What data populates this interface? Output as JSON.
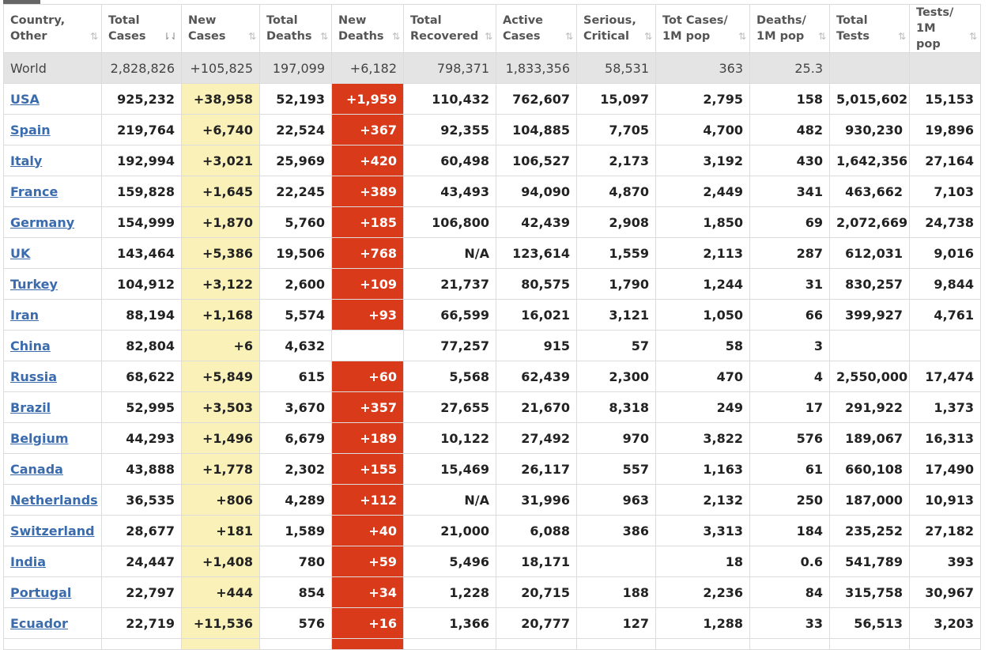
{
  "headers": [
    {
      "line1": "Country,",
      "line2": "Other",
      "sort": "⇅",
      "active": false
    },
    {
      "line1": "Total",
      "line2": "Cases",
      "sort": "⇂⇃",
      "active": true
    },
    {
      "line1": "New",
      "line2": "Cases",
      "sort": "⇅",
      "active": false
    },
    {
      "line1": "Total",
      "line2": "Deaths",
      "sort": "⇅",
      "active": false
    },
    {
      "line1": "New",
      "line2": "Deaths",
      "sort": "⇅",
      "active": false
    },
    {
      "line1": "Total",
      "line2": "Recovered",
      "sort": "⇅",
      "active": false
    },
    {
      "line1": "Active",
      "line2": "Cases",
      "sort": "⇅",
      "active": false
    },
    {
      "line1": "Serious,",
      "line2": "Critical",
      "sort": "⇅",
      "active": false
    },
    {
      "line1": "Tot Cases/",
      "line2": "1M pop",
      "sort": "⇅",
      "active": false
    },
    {
      "line1": "Deaths/",
      "line2": "1M pop",
      "sort": "⇅",
      "active": false
    },
    {
      "line1": "Total",
      "line2": "Tests",
      "sort": "⇅",
      "active": false
    },
    {
      "line1": "Tests/",
      "line2": "1M pop",
      "sort": "⇅",
      "active": false
    }
  ],
  "world": [
    "World",
    "2,828,826",
    "+105,825",
    "197,099",
    "+6,182",
    "798,371",
    "1,833,356",
    "58,531",
    "363",
    "25.3",
    "",
    ""
  ],
  "rows": [
    [
      "USA",
      "925,232",
      "+38,958",
      "52,193",
      "+1,959",
      "110,432",
      "762,607",
      "15,097",
      "2,795",
      "158",
      "5,015,602",
      "15,153"
    ],
    [
      "Spain",
      "219,764",
      "+6,740",
      "22,524",
      "+367",
      "92,355",
      "104,885",
      "7,705",
      "4,700",
      "482",
      "930,230",
      "19,896"
    ],
    [
      "Italy",
      "192,994",
      "+3,021",
      "25,969",
      "+420",
      "60,498",
      "106,527",
      "2,173",
      "3,192",
      "430",
      "1,642,356",
      "27,164"
    ],
    [
      "France",
      "159,828",
      "+1,645",
      "22,245",
      "+389",
      "43,493",
      "94,090",
      "4,870",
      "2,449",
      "341",
      "463,662",
      "7,103"
    ],
    [
      "Germany",
      "154,999",
      "+1,870",
      "5,760",
      "+185",
      "106,800",
      "42,439",
      "2,908",
      "1,850",
      "69",
      "2,072,669",
      "24,738"
    ],
    [
      "UK",
      "143,464",
      "+5,386",
      "19,506",
      "+768",
      "N/A",
      "123,614",
      "1,559",
      "2,113",
      "287",
      "612,031",
      "9,016"
    ],
    [
      "Turkey",
      "104,912",
      "+3,122",
      "2,600",
      "+109",
      "21,737",
      "80,575",
      "1,790",
      "1,244",
      "31",
      "830,257",
      "9,844"
    ],
    [
      "Iran",
      "88,194",
      "+1,168",
      "5,574",
      "+93",
      "66,599",
      "16,021",
      "3,121",
      "1,050",
      "66",
      "399,927",
      "4,761"
    ],
    [
      "China",
      "82,804",
      "+6",
      "4,632",
      "",
      "77,257",
      "915",
      "57",
      "58",
      "3",
      "",
      ""
    ],
    [
      "Russia",
      "68,622",
      "+5,849",
      "615",
      "+60",
      "5,568",
      "62,439",
      "2,300",
      "470",
      "4",
      "2,550,000",
      "17,474"
    ],
    [
      "Brazil",
      "52,995",
      "+3,503",
      "3,670",
      "+357",
      "27,655",
      "21,670",
      "8,318",
      "249",
      "17",
      "291,922",
      "1,373"
    ],
    [
      "Belgium",
      "44,293",
      "+1,496",
      "6,679",
      "+189",
      "10,122",
      "27,492",
      "970",
      "3,822",
      "576",
      "189,067",
      "16,313"
    ],
    [
      "Canada",
      "43,888",
      "+1,778",
      "2,302",
      "+155",
      "15,469",
      "26,117",
      "557",
      "1,163",
      "61",
      "660,108",
      "17,490"
    ],
    [
      "Netherlands",
      "36,535",
      "+806",
      "4,289",
      "+112",
      "N/A",
      "31,996",
      "963",
      "2,132",
      "250",
      "187,000",
      "10,913"
    ],
    [
      "Switzerland",
      "28,677",
      "+181",
      "1,589",
      "+40",
      "21,000",
      "6,088",
      "386",
      "3,313",
      "184",
      "235,252",
      "27,182"
    ],
    [
      "India",
      "24,447",
      "+1,408",
      "780",
      "+59",
      "5,496",
      "18,171",
      "",
      "18",
      "0.6",
      "541,789",
      "393"
    ],
    [
      "Portugal",
      "22,797",
      "+444",
      "854",
      "+34",
      "1,228",
      "20,715",
      "188",
      "2,236",
      "84",
      "315,758",
      "30,967"
    ],
    [
      "Ecuador",
      "22,719",
      "+11,536",
      "576",
      "+16",
      "1,366",
      "20,777",
      "127",
      "1,288",
      "33",
      "56,513",
      "3,203"
    ]
  ],
  "colors": {
    "new_cases_bg": "#f9f1b8",
    "new_deaths_bg": "#d93a1a",
    "link": "#3a6bad",
    "world_bg": "#e4e4e4"
  }
}
